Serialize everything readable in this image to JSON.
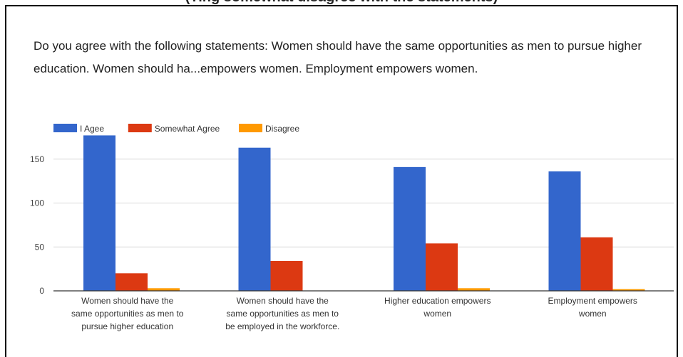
{
  "header": {
    "top_caption": "(Ting somewhat disagree with the statements)"
  },
  "question": {
    "text": "Do you agree with the following statements:   Women should have the same opportunities as men to pursue higher education.   Women should ha...empowers women.   Employment empowers women."
  },
  "colors": {
    "i_agree": "#3366cc",
    "somewhat_agree": "#dc3912",
    "disagree": "#ff9900",
    "grid": "#d9d9d9",
    "axis": "#333333"
  },
  "chart_data": {
    "type": "bar",
    "categories": [
      "Women should have the same opportunities as men to pursue higher education",
      "Women should have the same opportunities as men to be employed in the workforce.",
      "Higher education empowers women",
      "Employment empowers women"
    ],
    "category_lines": [
      [
        "Women should have the",
        "same opportunities as men to",
        "pursue higher education"
      ],
      [
        "Women should have the",
        "same opportunities as men to",
        "be employed in the workforce."
      ],
      [
        "Higher education empowers",
        "women"
      ],
      [
        "Employment empowers",
        "women"
      ]
    ],
    "series": [
      {
        "name": "I Agee",
        "values": [
          177,
          163,
          141,
          136
        ]
      },
      {
        "name": "Somewhat Agree",
        "values": [
          20,
          34,
          54,
          61
        ]
      },
      {
        "name": "Disagree",
        "values": [
          3,
          0,
          3,
          2
        ]
      }
    ],
    "yticks": [
      "0",
      "50",
      "100",
      "150"
    ],
    "ylim": [
      0,
      180
    ],
    "grid": true,
    "legend_position": "top-left",
    "title": "",
    "xlabel": "",
    "ylabel": ""
  }
}
